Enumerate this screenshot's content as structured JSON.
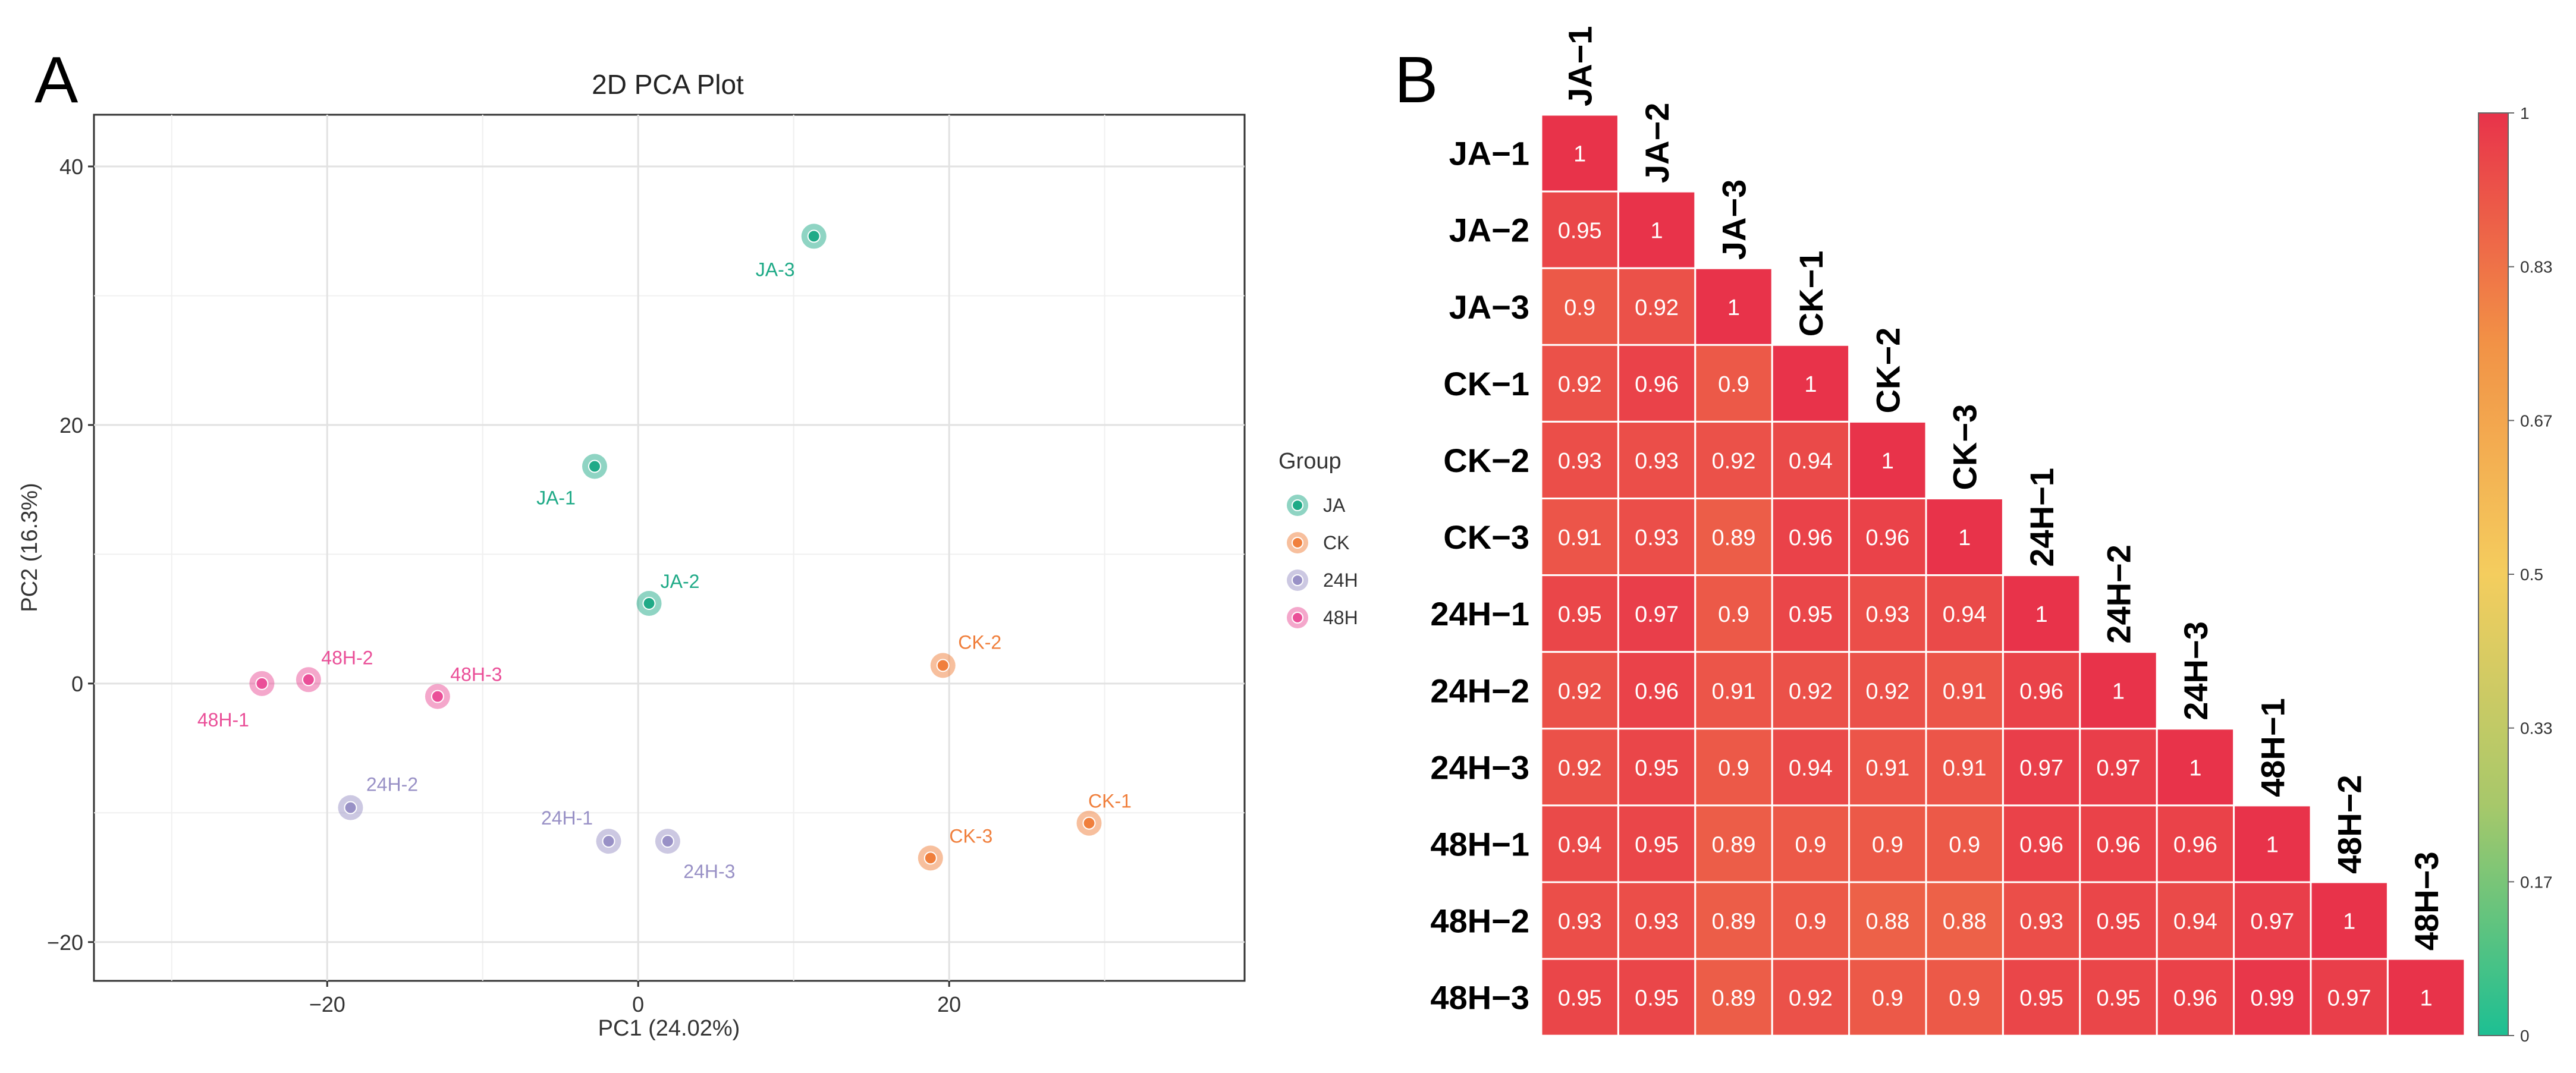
{
  "panels": {
    "a_letter": "A",
    "b_letter": "B"
  },
  "colors": {
    "JA": "#1faa87",
    "CK": "#f07f3c",
    "24H": "#9991c6",
    "48H": "#ea4f98",
    "heat_low": "#1dbf93",
    "heat_mid_low": "#a7c86a",
    "heat_mid": "#f4cd5e",
    "heat_mid_high": "#f29246",
    "heat_high": "#e8334a"
  },
  "chart_data": [
    {
      "type": "scatter",
      "title": "2D PCA Plot",
      "xlabel": "PC1 (24.02%)",
      "ylabel": "PC2 (16.3%)",
      "xlim": [
        -35,
        39
      ],
      "ylim": [
        -23,
        44
      ],
      "xticks": [
        -20,
        0,
        20
      ],
      "yticks": [
        -20,
        0,
        20,
        40
      ],
      "grid": true,
      "legend": {
        "title": "Group",
        "position": "right",
        "entries": [
          "JA",
          "CK",
          "24H",
          "48H"
        ]
      },
      "points": [
        {
          "label": "JA-1",
          "group": "JA",
          "x": -2.8,
          "y": 16.8
        },
        {
          "label": "JA-2",
          "group": "JA",
          "x": 0.7,
          "y": 6.2
        },
        {
          "label": "JA-3",
          "group": "JA",
          "x": 11.3,
          "y": 34.6
        },
        {
          "label": "CK-1",
          "group": "CK",
          "x": 29.0,
          "y": -10.8
        },
        {
          "label": "CK-2",
          "group": "CK",
          "x": 19.6,
          "y": 1.4
        },
        {
          "label": "CK-3",
          "group": "CK",
          "x": 18.8,
          "y": -13.5
        },
        {
          "label": "24H-1",
          "group": "24H",
          "x": -1.9,
          "y": -12.2
        },
        {
          "label": "24H-2",
          "group": "24H",
          "x": -18.5,
          "y": -9.6
        },
        {
          "label": "24H-3",
          "group": "24H",
          "x": 1.9,
          "y": -12.2
        },
        {
          "label": "48H-1",
          "group": "48H",
          "x": -24.2,
          "y": 0.0
        },
        {
          "label": "48H-2",
          "group": "48H",
          "x": -21.2,
          "y": 0.3
        },
        {
          "label": "48H-3",
          "group": "48H",
          "x": -12.9,
          "y": -1.0
        }
      ]
    },
    {
      "type": "heatmap",
      "samples": [
        "JA−1",
        "JA−2",
        "JA−3",
        "CK−1",
        "CK−2",
        "CK−3",
        "24H−1",
        "24H−2",
        "24H−3",
        "48H−1",
        "48H−2",
        "48H−3"
      ],
      "values": [
        [
          1
        ],
        [
          0.95,
          1
        ],
        [
          0.9,
          0.92,
          1
        ],
        [
          0.92,
          0.96,
          0.9,
          1
        ],
        [
          0.93,
          0.93,
          0.92,
          0.94,
          1
        ],
        [
          0.91,
          0.93,
          0.89,
          0.96,
          0.96,
          1
        ],
        [
          0.95,
          0.97,
          0.9,
          0.95,
          0.93,
          0.94,
          1
        ],
        [
          0.92,
          0.96,
          0.91,
          0.92,
          0.92,
          0.91,
          0.96,
          1
        ],
        [
          0.92,
          0.95,
          0.9,
          0.94,
          0.91,
          0.91,
          0.97,
          0.97,
          1
        ],
        [
          0.94,
          0.95,
          0.89,
          0.9,
          0.9,
          0.9,
          0.96,
          0.96,
          0.96,
          1
        ],
        [
          0.93,
          0.93,
          0.89,
          0.9,
          0.88,
          0.88,
          0.93,
          0.95,
          0.94,
          0.97,
          1
        ],
        [
          0.95,
          0.95,
          0.89,
          0.92,
          0.9,
          0.9,
          0.95,
          0.95,
          0.96,
          0.99,
          0.97,
          1
        ]
      ],
      "colorbar": {
        "range": [
          0,
          1
        ],
        "ticks": [
          "1",
          "0.83",
          "0.67",
          "0.5",
          "0.33",
          "0.17",
          "0"
        ]
      }
    }
  ]
}
